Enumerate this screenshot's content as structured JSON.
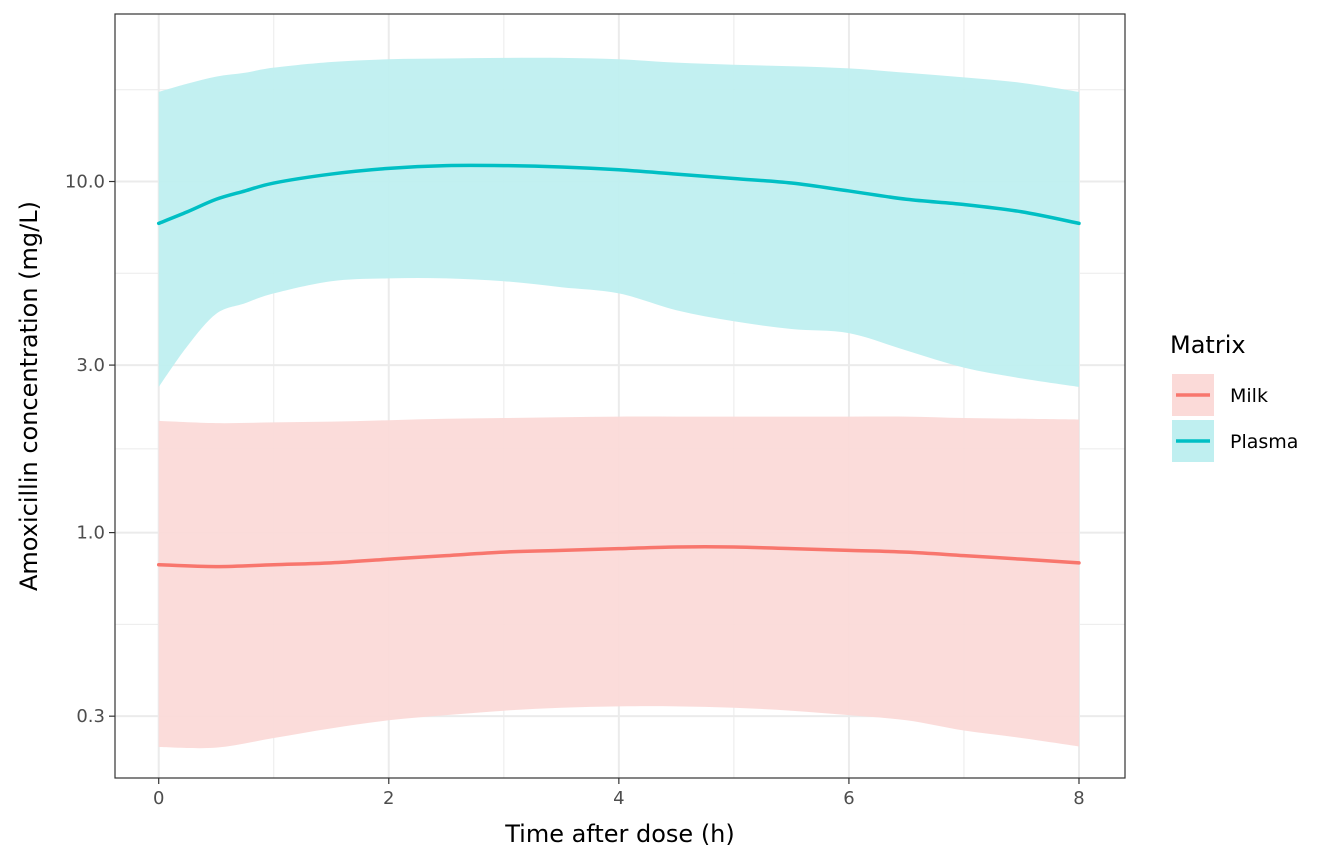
{
  "chart_data": {
    "type": "line",
    "title": "",
    "xlabel": "Time after dose (h)",
    "ylabel": "Amoxicillin concentration (mg/L)",
    "xlim": [
      -0.38,
      8.4
    ],
    "ylim": [
      0.2,
      30
    ],
    "y_scale": "log10",
    "grid": true,
    "x_ticks": [
      0,
      2,
      4,
      6,
      8
    ],
    "x_tick_labels": [
      "0",
      "2",
      "4",
      "6",
      "8"
    ],
    "y_ticks": [
      0.3,
      1.0,
      3.0,
      10.0
    ],
    "y_tick_labels": [
      "0.3",
      "1.0",
      "3.0",
      "10.0"
    ],
    "legend": {
      "title": "Matrix",
      "placement": "right"
    },
    "series": [
      {
        "name": "Milk",
        "color": "#F8766D",
        "band_color": "#FBDAD8",
        "x": [
          0,
          0.5,
          1,
          1.5,
          2,
          2.5,
          3,
          3.5,
          4,
          4.5,
          5,
          5.5,
          6,
          6.5,
          7,
          7.5,
          8
        ],
        "y": [
          0.81,
          0.8,
          0.81,
          0.82,
          0.84,
          0.86,
          0.88,
          0.89,
          0.9,
          0.91,
          0.91,
          0.9,
          0.89,
          0.88,
          0.86,
          0.84,
          0.82
        ],
        "lower": [
          0.245,
          0.244,
          0.26,
          0.277,
          0.292,
          0.302,
          0.311,
          0.317,
          0.32,
          0.32,
          0.317,
          0.311,
          0.302,
          0.292,
          0.273,
          0.26,
          0.246
        ],
        "upper": [
          2.08,
          2.05,
          2.06,
          2.07,
          2.09,
          2.11,
          2.12,
          2.13,
          2.14,
          2.14,
          2.14,
          2.14,
          2.14,
          2.14,
          2.12,
          2.11,
          2.1
        ]
      },
      {
        "name": "Plasma",
        "color": "#00BFC4",
        "band_color": "#BFEFF0",
        "x": [
          0,
          0.25,
          0.5,
          0.75,
          1,
          1.5,
          2,
          2.5,
          3,
          3.5,
          4,
          4.5,
          5,
          5.5,
          6,
          6.5,
          7,
          7.5,
          8
        ],
        "y": [
          7.6,
          8.2,
          8.9,
          9.4,
          9.9,
          10.5,
          10.9,
          11.1,
          11.1,
          11.0,
          10.8,
          10.5,
          10.2,
          9.9,
          9.4,
          8.9,
          8.6,
          8.2,
          7.6
        ],
        "lower": [
          2.6,
          3.4,
          4.2,
          4.5,
          4.8,
          5.2,
          5.3,
          5.3,
          5.2,
          5.0,
          4.8,
          4.3,
          4.0,
          3.8,
          3.7,
          3.3,
          2.95,
          2.75,
          2.6
        ],
        "upper": [
          18.0,
          19.0,
          19.9,
          20.4,
          21.1,
          21.9,
          22.3,
          22.4,
          22.5,
          22.5,
          22.3,
          21.8,
          21.5,
          21.3,
          21.0,
          20.4,
          19.8,
          19.1,
          18.0
        ]
      }
    ]
  }
}
